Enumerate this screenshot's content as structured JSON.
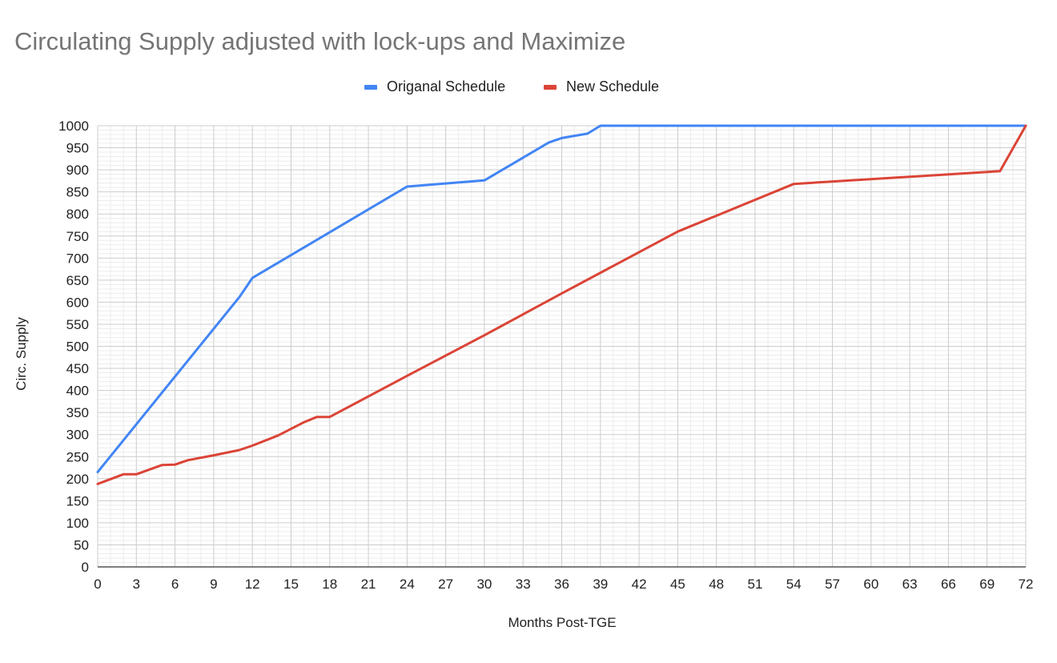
{
  "chart_data": {
    "type": "line",
    "title": "Circulating Supply adjusted with lock-ups and Maximize",
    "xlabel": "Months Post-TGE",
    "ylabel": "Circ. Supply",
    "xlim": [
      0,
      72
    ],
    "ylim": [
      0,
      1000
    ],
    "x_ticks": [
      0,
      3,
      6,
      9,
      12,
      15,
      18,
      21,
      24,
      27,
      30,
      33,
      36,
      39,
      42,
      45,
      48,
      51,
      54,
      57,
      60,
      63,
      66,
      69,
      72
    ],
    "y_ticks": [
      0,
      50,
      100,
      150,
      200,
      250,
      300,
      350,
      400,
      450,
      500,
      550,
      600,
      650,
      700,
      750,
      800,
      850,
      900,
      950,
      1000
    ],
    "legend_position": "top-center",
    "grid": true,
    "series": [
      {
        "name": "Origanal Schedule",
        "color": "#4285f4",
        "points": [
          [
            0,
            215
          ],
          [
            11,
            612
          ],
          [
            12,
            655
          ],
          [
            24,
            862
          ],
          [
            30,
            876
          ],
          [
            35,
            962
          ],
          [
            36,
            972
          ],
          [
            38,
            982
          ],
          [
            39,
            1000
          ],
          [
            72,
            1000
          ]
        ]
      },
      {
        "name": "New Schedule",
        "color": "#db4437",
        "points": [
          [
            0,
            188
          ],
          [
            2,
            210
          ],
          [
            3,
            210
          ],
          [
            5,
            231
          ],
          [
            6,
            232
          ],
          [
            7,
            242
          ],
          [
            9,
            253
          ],
          [
            11,
            265
          ],
          [
            12,
            275
          ],
          [
            14,
            298
          ],
          [
            16,
            328
          ],
          [
            17,
            340
          ],
          [
            18,
            340
          ],
          [
            24,
            433
          ],
          [
            30,
            525
          ],
          [
            36,
            620
          ],
          [
            45,
            760
          ],
          [
            54,
            868
          ],
          [
            70,
            897
          ],
          [
            72,
            1000
          ]
        ]
      }
    ]
  }
}
